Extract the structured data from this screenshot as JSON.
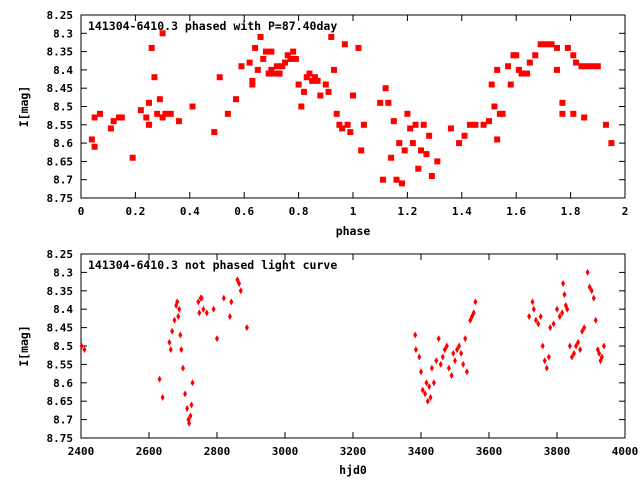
{
  "chart_data": [
    {
      "type": "scatter",
      "title": "141304-6410.3 phased with P=87.40day",
      "xlabel": "phase",
      "ylabel": "I[mag]",
      "xlim": [
        0,
        2
      ],
      "ylim": [
        8.25,
        8.75
      ],
      "y_inverted": true,
      "xticks": [
        "0",
        "0.2",
        "0.4",
        "0.6",
        "0.8",
        "1",
        "1.2",
        "1.4",
        "1.6",
        "1.8",
        "2"
      ],
      "yticks": [
        "8.25",
        "8.3",
        "8.35",
        "8.4",
        "8.45",
        "8.5",
        "8.55",
        "8.6",
        "8.65",
        "8.7",
        "8.75"
      ],
      "marker_color": "#ff0000",
      "marker": "filled-square",
      "series": [
        {
          "points": [
            [
              0.04,
              8.59
            ],
            [
              0.05,
              8.61
            ],
            [
              0.05,
              8.53
            ],
            [
              0.07,
              8.52
            ],
            [
              0.11,
              8.56
            ],
            [
              0.12,
              8.54
            ],
            [
              0.14,
              8.53
            ],
            [
              0.15,
              8.53
            ],
            [
              0.19,
              8.64
            ],
            [
              0.22,
              8.51
            ],
            [
              0.24,
              8.53
            ],
            [
              0.25,
              8.55
            ],
            [
              0.25,
              8.49
            ],
            [
              0.26,
              8.34
            ],
            [
              0.27,
              8.42
            ],
            [
              0.28,
              8.52
            ],
            [
              0.29,
              8.48
            ],
            [
              0.3,
              8.3
            ],
            [
              0.3,
              8.53
            ],
            [
              0.31,
              8.52
            ],
            [
              0.33,
              8.52
            ],
            [
              0.36,
              8.54
            ],
            [
              0.41,
              8.5
            ],
            [
              0.49,
              8.57
            ],
            [
              0.51,
              8.42
            ],
            [
              0.54,
              8.52
            ],
            [
              0.57,
              8.48
            ],
            [
              0.59,
              8.39
            ],
            [
              0.62,
              8.38
            ],
            [
              0.63,
              8.44
            ],
            [
              0.63,
              8.43
            ],
            [
              0.64,
              8.34
            ],
            [
              0.65,
              8.4
            ],
            [
              0.66,
              8.31
            ],
            [
              0.67,
              8.37
            ],
            [
              0.68,
              8.35
            ],
            [
              0.69,
              8.41
            ],
            [
              0.7,
              8.35
            ],
            [
              0.7,
              8.4
            ],
            [
              0.71,
              8.41
            ],
            [
              0.72,
              8.39
            ],
            [
              0.73,
              8.41
            ],
            [
              0.74,
              8.39
            ],
            [
              0.75,
              8.38
            ],
            [
              0.76,
              8.36
            ],
            [
              0.77,
              8.37
            ],
            [
              0.78,
              8.35
            ],
            [
              0.79,
              8.37
            ],
            [
              0.8,
              8.44
            ],
            [
              0.81,
              8.5
            ],
            [
              0.82,
              8.46
            ],
            [
              0.83,
              8.42
            ],
            [
              0.84,
              8.41
            ],
            [
              0.85,
              8.43
            ],
            [
              0.86,
              8.42
            ],
            [
              0.87,
              8.43
            ],
            [
              0.88,
              8.47
            ],
            [
              0.9,
              8.44
            ],
            [
              0.91,
              8.46
            ],
            [
              0.92,
              8.31
            ],
            [
              0.93,
              8.4
            ],
            [
              0.94,
              8.52
            ],
            [
              0.95,
              8.55
            ],
            [
              0.96,
              8.56
            ],
            [
              0.97,
              8.33
            ],
            [
              0.98,
              8.55
            ],
            [
              0.99,
              8.57
            ],
            [
              1.0,
              8.47
            ],
            [
              1.02,
              8.34
            ],
            [
              1.03,
              8.62
            ],
            [
              1.04,
              8.55
            ],
            [
              1.1,
              8.49
            ],
            [
              1.11,
              8.7
            ],
            [
              1.12,
              8.45
            ],
            [
              1.13,
              8.49
            ],
            [
              1.14,
              8.64
            ],
            [
              1.15,
              8.54
            ],
            [
              1.16,
              8.7
            ],
            [
              1.17,
              8.6
            ],
            [
              1.18,
              8.71
            ],
            [
              1.19,
              8.62
            ],
            [
              1.2,
              8.52
            ],
            [
              1.21,
              8.56
            ],
            [
              1.22,
              8.6
            ],
            [
              1.23,
              8.55
            ],
            [
              1.24,
              8.67
            ],
            [
              1.25,
              8.62
            ],
            [
              1.26,
              8.55
            ],
            [
              1.27,
              8.63
            ],
            [
              1.28,
              8.58
            ],
            [
              1.29,
              8.69
            ],
            [
              1.31,
              8.65
            ],
            [
              1.36,
              8.56
            ],
            [
              1.39,
              8.6
            ],
            [
              1.41,
              8.58
            ],
            [
              1.43,
              8.55
            ],
            [
              1.45,
              8.55
            ],
            [
              1.48,
              8.55
            ],
            [
              1.5,
              8.54
            ],
            [
              1.51,
              8.44
            ],
            [
              1.52,
              8.5
            ],
            [
              1.53,
              8.59
            ],
            [
              1.53,
              8.4
            ],
            [
              1.54,
              8.52
            ],
            [
              1.55,
              8.52
            ],
            [
              1.57,
              8.39
            ],
            [
              1.58,
              8.44
            ],
            [
              1.59,
              8.36
            ],
            [
              1.6,
              8.36
            ],
            [
              1.61,
              8.4
            ],
            [
              1.62,
              8.41
            ],
            [
              1.64,
              8.41
            ],
            [
              1.65,
              8.38
            ],
            [
              1.67,
              8.36
            ],
            [
              1.69,
              8.33
            ],
            [
              1.71,
              8.33
            ],
            [
              1.73,
              8.33
            ],
            [
              1.75,
              8.34
            ],
            [
              1.75,
              8.4
            ],
            [
              1.77,
              8.49
            ],
            [
              1.77,
              8.52
            ],
            [
              1.79,
              8.34
            ],
            [
              1.81,
              8.36
            ],
            [
              1.81,
              8.52
            ],
            [
              1.82,
              8.38
            ],
            [
              1.84,
              8.39
            ],
            [
              1.85,
              8.53
            ],
            [
              1.86,
              8.39
            ],
            [
              1.88,
              8.39
            ],
            [
              1.9,
              8.39
            ],
            [
              1.93,
              8.55
            ],
            [
              1.95,
              8.6
            ]
          ]
        }
      ]
    },
    {
      "type": "scatter",
      "title": "141304-6410.3 not phased light curve",
      "xlabel": "hjd0",
      "ylabel": "I[mag]",
      "xlim": [
        2400,
        4000
      ],
      "ylim": [
        8.25,
        8.75
      ],
      "y_inverted": true,
      "xticks": [
        "2400",
        "2600",
        "2800",
        "3000",
        "3200",
        "3400",
        "3600",
        "3800",
        "4000"
      ],
      "yticks": [
        "8.25",
        "8.3",
        "8.35",
        "8.4",
        "8.45",
        "8.5",
        "8.55",
        "8.6",
        "8.65",
        "8.7",
        "8.75"
      ],
      "marker_color": "#ff0000",
      "marker": "small-diamond",
      "series": [
        {
          "points": [
            [
              2402,
              8.5
            ],
            [
              2410,
              8.51
            ],
            [
              2631,
              8.59
            ],
            [
              2640,
              8.64
            ],
            [
              2660,
              8.49
            ],
            [
              2664,
              8.51
            ],
            [
              2668,
              8.46
            ],
            [
              2675,
              8.43
            ],
            [
              2680,
              8.39
            ],
            [
              2683,
              8.38
            ],
            [
              2686,
              8.42
            ],
            [
              2689,
              8.4
            ],
            [
              2692,
              8.47
            ],
            [
              2695,
              8.51
            ],
            [
              2700,
              8.56
            ],
            [
              2706,
              8.63
            ],
            [
              2712,
              8.67
            ],
            [
              2716,
              8.7
            ],
            [
              2718,
              8.71
            ],
            [
              2722,
              8.69
            ],
            [
              2725,
              8.66
            ],
            [
              2728,
              8.6
            ],
            [
              2745,
              8.38
            ],
            [
              2748,
              8.41
            ],
            [
              2752,
              8.37
            ],
            [
              2755,
              8.37
            ],
            [
              2760,
              8.4
            ],
            [
              2770,
              8.41
            ],
            [
              2790,
              8.4
            ],
            [
              2800,
              8.48
            ],
            [
              2820,
              8.37
            ],
            [
              2838,
              8.42
            ],
            [
              2842,
              8.38
            ],
            [
              2860,
              8.32
            ],
            [
              2865,
              8.33
            ],
            [
              2870,
              8.35
            ],
            [
              2888,
              8.45
            ],
            [
              3383,
              8.47
            ],
            [
              3385,
              8.51
            ],
            [
              3395,
              8.53
            ],
            [
              3400,
              8.57
            ],
            [
              3405,
              8.62
            ],
            [
              3412,
              8.63
            ],
            [
              3416,
              8.6
            ],
            [
              3420,
              8.65
            ],
            [
              3424,
              8.61
            ],
            [
              3428,
              8.64
            ],
            [
              3432,
              8.56
            ],
            [
              3438,
              8.6
            ],
            [
              3445,
              8.54
            ],
            [
              3452,
              8.48
            ],
            [
              3458,
              8.55
            ],
            [
              3464,
              8.53
            ],
            [
              3470,
              8.51
            ],
            [
              3476,
              8.5
            ],
            [
              3482,
              8.56
            ],
            [
              3490,
              8.58
            ],
            [
              3495,
              8.52
            ],
            [
              3500,
              8.54
            ],
            [
              3506,
              8.51
            ],
            [
              3512,
              8.5
            ],
            [
              3518,
              8.52
            ],
            [
              3524,
              8.55
            ],
            [
              3530,
              8.48
            ],
            [
              3535,
              8.57
            ],
            [
              3545,
              8.43
            ],
            [
              3550,
              8.42
            ],
            [
              3555,
              8.41
            ],
            [
              3560,
              8.38
            ],
            [
              3718,
              8.42
            ],
            [
              3728,
              8.38
            ],
            [
              3732,
              8.4
            ],
            [
              3738,
              8.43
            ],
            [
              3745,
              8.44
            ],
            [
              3752,
              8.42
            ],
            [
              3758,
              8.5
            ],
            [
              3764,
              8.54
            ],
            [
              3770,
              8.56
            ],
            [
              3776,
              8.53
            ],
            [
              3780,
              8.45
            ],
            [
              3790,
              8.44
            ],
            [
              3800,
              8.4
            ],
            [
              3808,
              8.42
            ],
            [
              3815,
              8.41
            ],
            [
              3818,
              8.33
            ],
            [
              3822,
              8.36
            ],
            [
              3826,
              8.39
            ],
            [
              3830,
              8.4
            ],
            [
              3838,
              8.5
            ],
            [
              3844,
              8.53
            ],
            [
              3850,
              8.52
            ],
            [
              3856,
              8.5
            ],
            [
              3862,
              8.49
            ],
            [
              3868,
              8.51
            ],
            [
              3874,
              8.46
            ],
            [
              3880,
              8.45
            ],
            [
              3890,
              8.3
            ],
            [
              3896,
              8.34
            ],
            [
              3902,
              8.35
            ],
            [
              3908,
              8.37
            ],
            [
              3914,
              8.43
            ],
            [
              3920,
              8.51
            ],
            [
              3924,
              8.52
            ],
            [
              3928,
              8.54
            ],
            [
              3932,
              8.53
            ],
            [
              3938,
              8.5
            ]
          ]
        }
      ]
    }
  ]
}
